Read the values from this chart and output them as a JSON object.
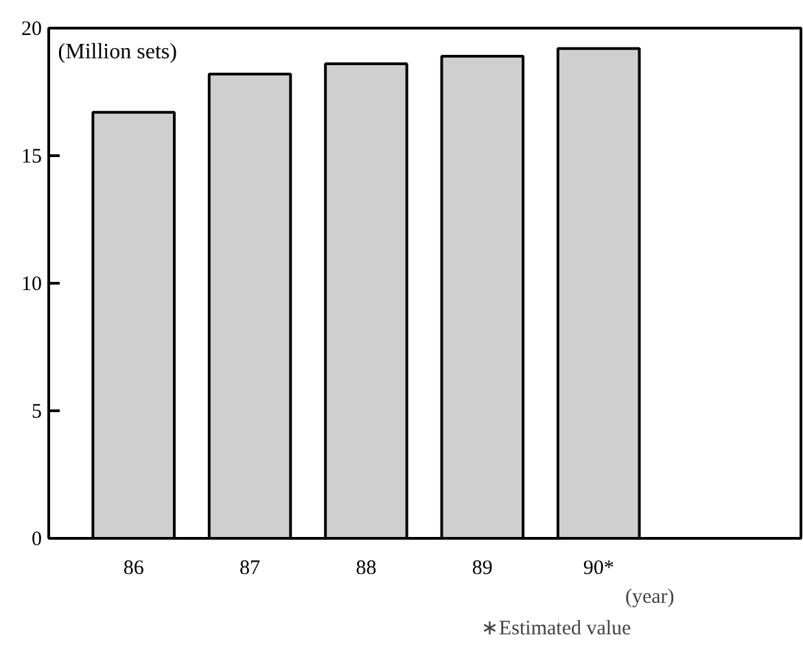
{
  "chart_data": {
    "type": "bar",
    "ylabel": "(Million sets)",
    "xlabel": "(year)",
    "categories": [
      "86",
      "87",
      "88",
      "89",
      "90*"
    ],
    "values": [
      16.7,
      18.2,
      18.6,
      18.9,
      19.2
    ],
    "color": "#cfcfcf",
    "ylim": [
      0,
      20
    ],
    "yticks": [
      0,
      5,
      10,
      15,
      20
    ],
    "grid": false,
    "annotations": [
      "∗Estimated value"
    ]
  }
}
